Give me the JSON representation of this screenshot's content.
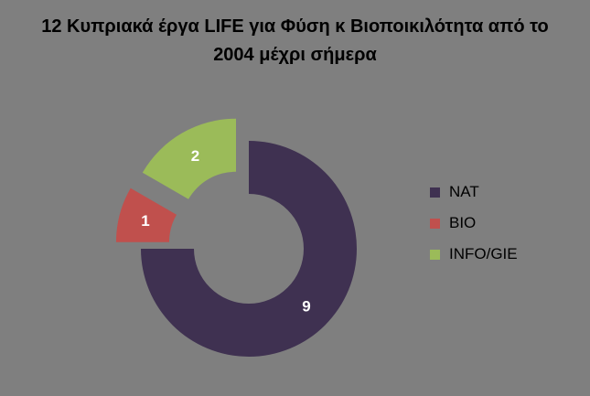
{
  "chart_data": {
    "type": "pie",
    "title": [
      "12 Κυπριακά έργα LIFE για Φύση κ Βιοποικιλότητα από το",
      "2004 μέχρι σήμερα"
    ],
    "categories": [
      "NAT",
      "BIO",
      "INFO/GIE"
    ],
    "values": [
      9,
      1,
      2
    ],
    "colors": [
      "#3f3151",
      "#c0504d",
      "#9bbb59"
    ],
    "label_color": "#ffffff",
    "exploded": [
      false,
      true,
      true
    ],
    "donut": true,
    "legend_position": "right"
  }
}
